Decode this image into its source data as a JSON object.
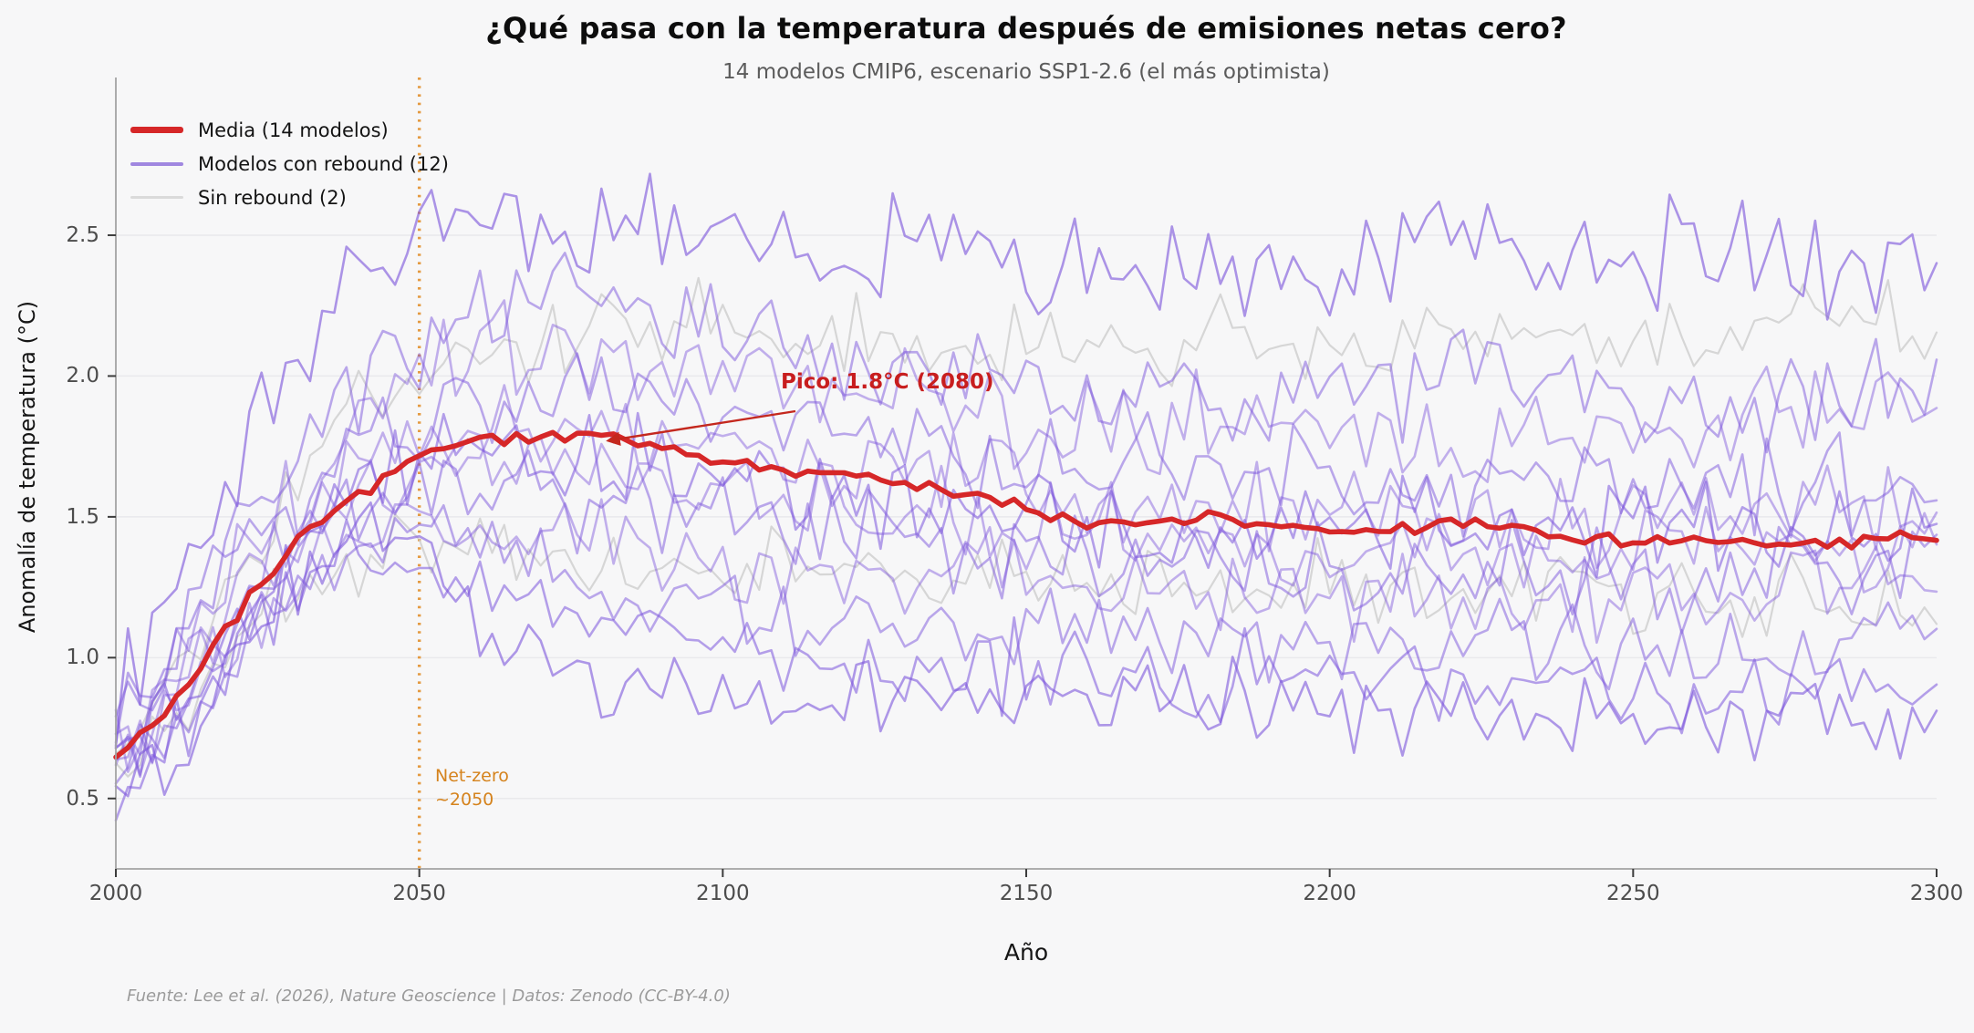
{
  "figure": {
    "footer": "Fuente: Lee et al. (2026), Nature Geoscience | Datos: Zenodo (CC-BY-4.0)",
    "background_color": "#f7f7f8"
  },
  "chart_data": {
    "type": "line",
    "title": "¿Qué pasa con la temperatura después de emisiones netas cero?",
    "subtitle": "14 modelos CMIP6, escenario SSP1-2.6 (el más optimista)",
    "xlabel": "Año",
    "ylabel": "Anomalía de temperatura (°C)",
    "x_range": [
      2000,
      2300
    ],
    "ylim": [
      0.25,
      3.06
    ],
    "x_ticks": [
      2000,
      2050,
      2100,
      2150,
      2200,
      2250,
      2300
    ],
    "y_ticks": [
      "0.5",
      "1.0",
      "1.5",
      "2.0",
      "2.5"
    ],
    "grid": "horizontal-only",
    "grid_color": "#e9e9ec",
    "spine_color": "#a3a3a3",
    "legend_position": "upper-left",
    "legend": [
      {
        "label": "Media (14 modelos)",
        "color": "#d62728",
        "thickness": 7,
        "opacity": 1
      },
      {
        "label": "Modelos con rebound (12)",
        "color": "#9173dc",
        "thickness": 4,
        "opacity": 0.85
      },
      {
        "label": "Sin rebound (2)",
        "color": "#dadada",
        "thickness": 3,
        "opacity": 1
      }
    ],
    "annotation": {
      "text": "Pico: 1.8°C (2080)",
      "year": 2080,
      "value": 1.8,
      "color": "#c4281e"
    },
    "netzero": {
      "year": 2050,
      "label_line1": "Net-zero",
      "label_line2": "~2050",
      "color": "#e49a41"
    },
    "anchor_years": [
      2000,
      2010,
      2020,
      2030,
      2040,
      2050,
      2060,
      2070,
      2080,
      2090,
      2100,
      2120,
      2140,
      2160,
      2180,
      2200,
      2220,
      2240,
      2260,
      2280,
      2300
    ],
    "series": [
      {
        "name": "sin-rebound-1",
        "role": "no_rebound",
        "color": "#c8c8c8",
        "opacity": 0.7,
        "width": 2.2,
        "noise": 0.1,
        "values": [
          0.7,
          0.95,
          1.3,
          1.65,
          1.9,
          2.05,
          2.1,
          2.12,
          2.15,
          2.18,
          2.2,
          2.15,
          2.12,
          2.1,
          2.15,
          2.1,
          2.12,
          2.15,
          2.1,
          2.25,
          2.15
        ]
      },
      {
        "name": "sin-rebound-2",
        "role": "no_rebound",
        "color": "#c8c8c8",
        "opacity": 0.7,
        "width": 2.2,
        "noise": 0.09,
        "values": [
          0.55,
          0.78,
          1.05,
          1.25,
          1.35,
          1.4,
          1.38,
          1.36,
          1.35,
          1.32,
          1.3,
          1.32,
          1.28,
          1.3,
          1.25,
          1.28,
          1.22,
          1.25,
          1.2,
          1.22,
          1.2
        ]
      },
      {
        "name": "rebound-1",
        "role": "rebound",
        "color": "#7c55dc",
        "opacity": 0.62,
        "width": 2.6,
        "noise": 0.13,
        "values": [
          0.9,
          1.25,
          1.65,
          2.1,
          2.35,
          2.5,
          2.55,
          2.55,
          2.6,
          2.55,
          2.45,
          2.42,
          2.45,
          2.4,
          2.35,
          2.4,
          2.45,
          2.38,
          2.45,
          2.4,
          2.4
        ]
      },
      {
        "name": "rebound-2",
        "role": "rebound",
        "color": "#7c55dc",
        "opacity": 0.5,
        "width": 2.6,
        "noise": 0.12,
        "values": [
          0.75,
          1.0,
          1.4,
          1.75,
          2.0,
          2.15,
          2.25,
          2.3,
          2.3,
          2.25,
          2.2,
          2.1,
          2.05,
          1.95,
          1.9,
          1.95,
          2.0,
          1.95,
          1.9,
          1.95,
          1.95
        ]
      },
      {
        "name": "rebound-3",
        "role": "rebound",
        "color": "#7c55dc",
        "opacity": 0.45,
        "width": 2.6,
        "noise": 0.12,
        "values": [
          0.7,
          0.95,
          1.3,
          1.6,
          1.8,
          2.0,
          2.1,
          2.15,
          2.1,
          2.05,
          2.0,
          1.95,
          1.85,
          1.8,
          1.85,
          1.8,
          1.75,
          1.8,
          1.85,
          1.8,
          1.85
        ]
      },
      {
        "name": "rebound-4",
        "role": "rebound",
        "color": "#7c55dc",
        "opacity": 0.5,
        "width": 2.6,
        "noise": 0.11,
        "values": [
          0.8,
          1.05,
          1.35,
          1.55,
          1.7,
          1.8,
          1.9,
          1.95,
          1.95,
          1.9,
          1.85,
          1.8,
          1.7,
          1.65,
          1.7,
          1.65,
          1.6,
          1.65,
          1.6,
          1.6,
          1.6
        ]
      },
      {
        "name": "rebound-5",
        "role": "rebound",
        "color": "#7c55dc",
        "opacity": 0.45,
        "width": 2.6,
        "noise": 0.11,
        "values": [
          0.65,
          0.9,
          1.2,
          1.5,
          1.65,
          1.75,
          1.8,
          1.85,
          1.8,
          1.8,
          1.75,
          1.7,
          1.65,
          1.55,
          1.5,
          1.55,
          1.5,
          1.45,
          1.5,
          1.55,
          1.55
        ]
      },
      {
        "name": "rebound-6",
        "role": "rebound",
        "color": "#7c55dc",
        "opacity": 0.55,
        "width": 2.6,
        "noise": 0.11,
        "values": [
          0.6,
          0.85,
          1.15,
          1.45,
          1.6,
          1.7,
          1.75,
          1.72,
          1.7,
          1.68,
          1.65,
          1.6,
          1.55,
          1.5,
          1.45,
          1.5,
          1.45,
          1.48,
          1.45,
          1.42,
          1.48
        ]
      },
      {
        "name": "rebound-7",
        "role": "rebound",
        "color": "#7c55dc",
        "opacity": 0.45,
        "width": 2.6,
        "noise": 0.1,
        "values": [
          0.65,
          0.88,
          1.18,
          1.45,
          1.58,
          1.65,
          1.7,
          1.68,
          1.65,
          1.6,
          1.58,
          1.55,
          1.5,
          1.45,
          1.42,
          1.4,
          1.42,
          1.38,
          1.4,
          1.42,
          1.4
        ]
      },
      {
        "name": "rebound-8",
        "role": "rebound",
        "color": "#7c55dc",
        "opacity": 0.5,
        "width": 2.6,
        "noise": 0.11,
        "values": [
          0.55,
          0.8,
          1.1,
          1.35,
          1.5,
          1.6,
          1.6,
          1.58,
          1.55,
          1.5,
          1.48,
          1.45,
          1.4,
          1.35,
          1.32,
          1.35,
          1.3,
          1.32,
          1.28,
          1.3,
          1.35
        ]
      },
      {
        "name": "rebound-9",
        "role": "rebound",
        "color": "#7c55dc",
        "opacity": 0.45,
        "width": 2.6,
        "noise": 0.1,
        "values": [
          0.6,
          0.82,
          1.08,
          1.3,
          1.45,
          1.5,
          1.45,
          1.42,
          1.4,
          1.38,
          1.35,
          1.32,
          1.3,
          1.28,
          1.25,
          1.22,
          1.25,
          1.2,
          1.22,
          1.25,
          1.25
        ]
      },
      {
        "name": "rebound-10",
        "role": "rebound",
        "color": "#7c55dc",
        "opacity": 0.5,
        "width": 2.6,
        "noise": 0.1,
        "values": [
          0.55,
          0.75,
          1.05,
          1.28,
          1.4,
          1.45,
          1.4,
          1.32,
          1.25,
          1.2,
          1.18,
          1.15,
          1.12,
          1.1,
          1.08,
          1.05,
          1.08,
          1.05,
          1.02,
          1.05,
          1.1
        ]
      },
      {
        "name": "rebound-11",
        "role": "rebound",
        "color": "#7c55dc",
        "opacity": 0.55,
        "width": 2.6,
        "noise": 0.1,
        "values": [
          0.5,
          0.7,
          1.0,
          1.25,
          1.35,
          1.35,
          1.25,
          1.18,
          1.1,
          1.05,
          1.02,
          1.0,
          0.98,
          0.95,
          0.92,
          0.95,
          0.9,
          0.92,
          0.88,
          0.9,
          0.9
        ]
      },
      {
        "name": "rebound-12",
        "role": "rebound",
        "color": "#7c55dc",
        "opacity": 0.6,
        "width": 2.6,
        "noise": 0.09,
        "values": [
          0.5,
          0.7,
          1.02,
          1.3,
          1.45,
          1.38,
          1.1,
          0.98,
          0.92,
          0.9,
          0.88,
          0.9,
          0.88,
          0.85,
          0.85,
          0.82,
          0.8,
          0.78,
          0.75,
          0.78,
          0.78
        ]
      },
      {
        "name": "Media (14 modelos)",
        "role": "mean",
        "color": "#d62728",
        "opacity": 1,
        "width": 5.6,
        "noise": 0.016,
        "values": [
          0.65,
          0.85,
          1.15,
          1.42,
          1.58,
          1.72,
          1.77,
          1.78,
          1.79,
          1.74,
          1.69,
          1.66,
          1.58,
          1.47,
          1.5,
          1.44,
          1.48,
          1.42,
          1.42,
          1.4,
          1.43
        ]
      }
    ]
  }
}
